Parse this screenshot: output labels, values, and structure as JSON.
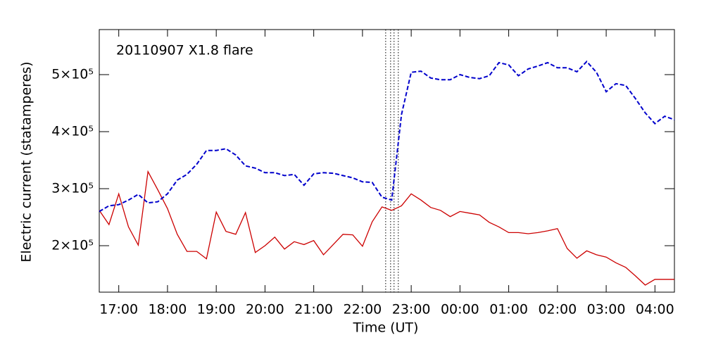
{
  "chart_data": {
    "type": "line",
    "annotation": "20110907 X1.8 flare",
    "xlabel": "Time (UT)",
    "ylabel": "Electric current (statamperes)",
    "x": [
      16.6,
      16.8,
      17.0,
      17.2,
      17.4,
      17.6,
      17.8,
      18.0,
      18.2,
      18.4,
      18.6,
      18.8,
      19.0,
      19.2,
      19.4,
      19.6,
      19.8,
      20.0,
      20.2,
      20.4,
      20.6,
      20.8,
      21.0,
      21.2,
      21.4,
      21.6,
      21.8,
      22.0,
      22.2,
      22.4,
      22.6,
      22.8,
      23.0,
      23.2,
      23.4,
      23.6,
      23.8,
      24.0,
      24.2,
      24.4,
      24.6,
      24.8,
      25.0,
      25.2,
      25.4,
      25.6,
      25.8,
      26.0,
      26.2,
      26.4,
      26.6,
      26.8,
      27.0,
      27.2,
      27.4,
      27.6,
      27.8,
      28.0,
      28.2,
      28.4
    ],
    "series": [
      {
        "color": "#cc0000",
        "dash": "solid",
        "values": [
          262000,
          237000,
          291000,
          233000,
          201000,
          330000,
          298000,
          265000,
          220000,
          190000,
          190000,
          177000,
          259000,
          225000,
          220000,
          258000,
          188000,
          200000,
          215000,
          194000,
          207000,
          202000,
          209000,
          184000,
          202000,
          220000,
          219000,
          199000,
          242000,
          268000,
          262000,
          270000,
          291000,
          280000,
          267000,
          262000,
          251000,
          260000,
          257000,
          254000,
          241000,
          233000,
          223000,
          223000,
          221000,
          223000,
          226000,
          230000,
          195000,
          178000,
          191000,
          184000,
          180000,
          170000,
          162000,
          147000,
          131000,
          141000,
          141000,
          141000
        ]
      },
      {
        "color": "#0000cc",
        "dash": "dashed",
        "values": [
          260000,
          270000,
          272000,
          280000,
          290000,
          275000,
          277000,
          291000,
          315000,
          325000,
          343000,
          367000,
          367000,
          370000,
          359000,
          340000,
          336000,
          328000,
          328000,
          323000,
          325000,
          306000,
          326000,
          328000,
          327000,
          323000,
          319000,
          312000,
          311000,
          285000,
          280000,
          430000,
          504000,
          506000,
          494000,
          491000,
          491000,
          500000,
          495000,
          493000,
          498000,
          521000,
          517000,
          498000,
          510000,
          515000,
          521000,
          512000,
          512000,
          505000,
          523000,
          504000,
          470000,
          484000,
          481000,
          458000,
          433000,
          414000,
          427000,
          421000
        ]
      }
    ],
    "vlines": [
      22.476,
      22.577,
      22.648,
      22.735
    ],
    "xlim": [
      16.6,
      28.4
    ],
    "ylim": [
      118500,
      579000
    ],
    "xticks": [
      {
        "value": 17,
        "label": "17:00"
      },
      {
        "value": 18,
        "label": "18:00"
      },
      {
        "value": 19,
        "label": "19:00"
      },
      {
        "value": 20,
        "label": "20:00"
      },
      {
        "value": 21,
        "label": "21:00"
      },
      {
        "value": 22,
        "label": "22:00"
      },
      {
        "value": 23,
        "label": "23:00"
      },
      {
        "value": 24,
        "label": "00:00"
      },
      {
        "value": 25,
        "label": "01:00"
      },
      {
        "value": 26,
        "label": "02:00"
      },
      {
        "value": 27,
        "label": "03:00"
      },
      {
        "value": 28,
        "label": "04:00"
      }
    ],
    "yticks": [
      {
        "value": 200000,
        "label": "2×10⁵"
      },
      {
        "value": 300000,
        "label": "3×10⁵"
      },
      {
        "value": 400000,
        "label": "4×10⁵"
      },
      {
        "value": 500000,
        "label": "5×10⁵"
      }
    ]
  }
}
